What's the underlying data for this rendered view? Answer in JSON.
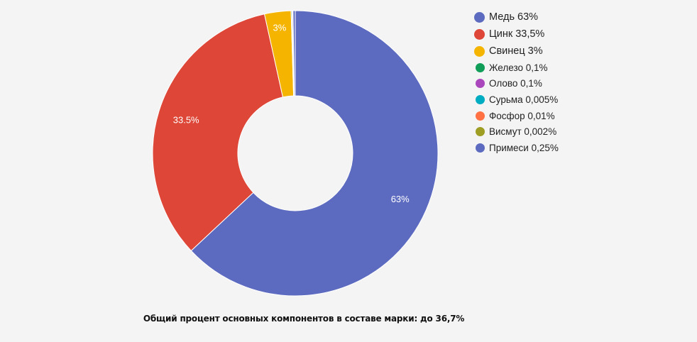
{
  "chart_data": {
    "type": "pie",
    "donut": true,
    "start": "top, clockwise",
    "slices": [
      {
        "name": "Медь 63%",
        "value": 63,
        "color": "#5c6bc0",
        "label": "63%"
      },
      {
        "name": "Цинк 33,5%",
        "value": 33.5,
        "color": "#de4637",
        "label": "33.5%"
      },
      {
        "name": "Свинец 3%",
        "value": 3,
        "color": "#f4b400",
        "label": "3%"
      },
      {
        "name": "Железо 0,1%",
        "value": 0.1,
        "color": "#0f9d58",
        "label": ""
      },
      {
        "name": "Олово 0,1%",
        "value": 0.1,
        "color": "#ab47bc",
        "label": ""
      },
      {
        "name": "Сурьма 0,005%",
        "value": 0.005,
        "color": "#00acc1",
        "label": ""
      },
      {
        "name": "Фосфор 0,01%",
        "value": 0.01,
        "color": "#ff7043",
        "label": ""
      },
      {
        "name": "Висмут 0,002%",
        "value": 0.002,
        "color": "#9e9d24",
        "label": ""
      },
      {
        "name": "Примеси 0,25%",
        "value": 0.25,
        "color": "#5c6bc0",
        "label": ""
      }
    ],
    "legend_position": "right"
  },
  "footer": "Общий процент основных компонентов в составе марки: до 36,7%"
}
